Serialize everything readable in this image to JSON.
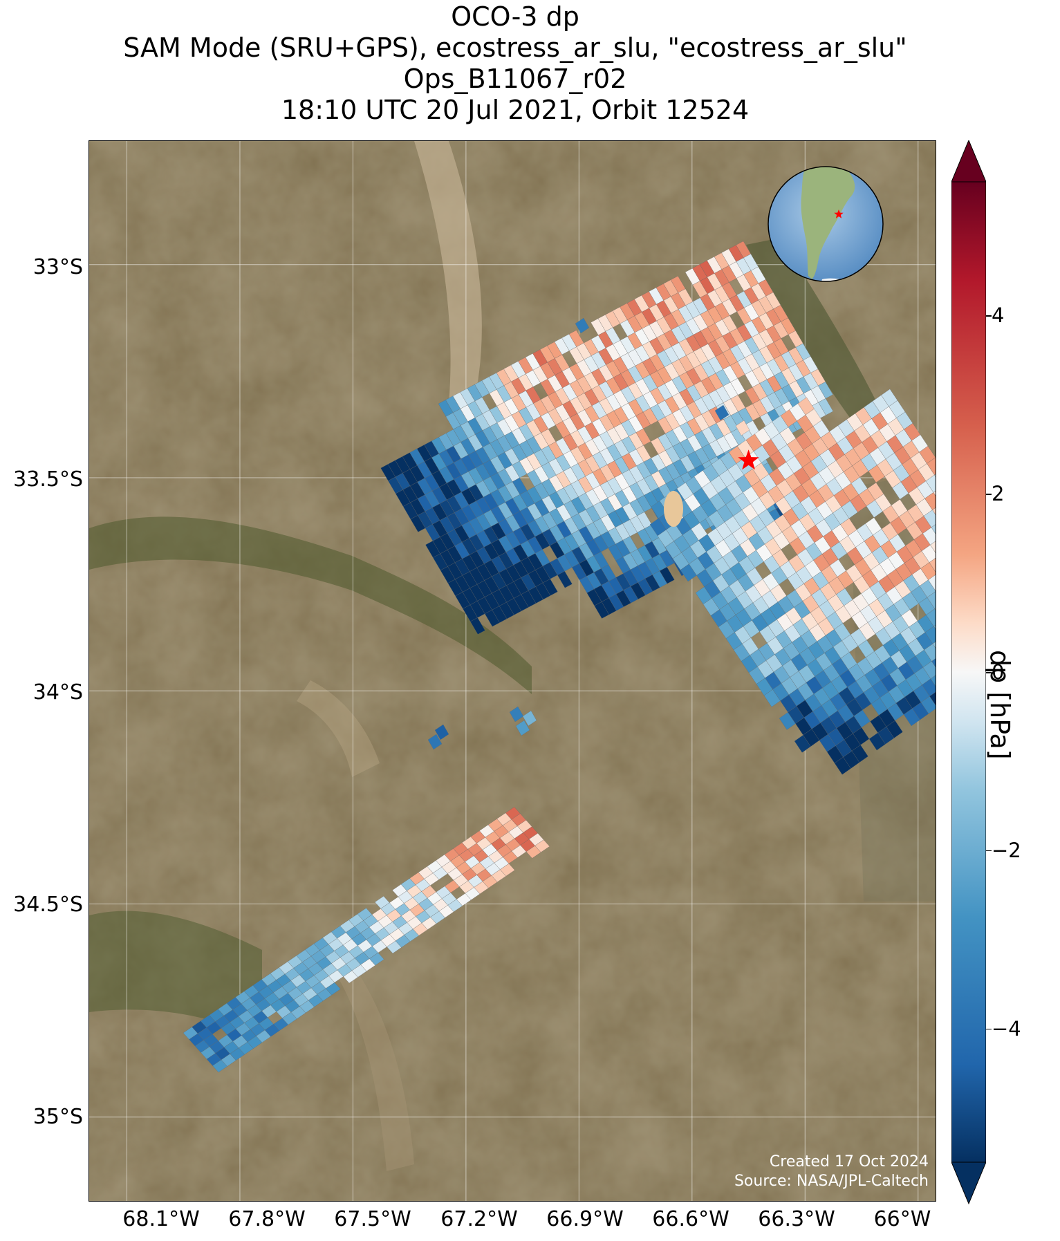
{
  "title": {
    "line1": "OCO-3 dp",
    "line2": "SAM Mode (SRU+GPS), ecostress_ar_slu, \"ecostress_ar_slu\"",
    "line3": "Ops_B11067_r02",
    "line4": "18:10 UTC 20 Jul 2021, Orbit 12524"
  },
  "map": {
    "lon_range": [
      -68.2,
      -65.95
    ],
    "lat_range": [
      -35.2,
      -32.71
    ],
    "lat_ticks": [
      "33°S",
      "33.5°S",
      "34°S",
      "34.5°S",
      "35°S"
    ],
    "lon_ticks": [
      "68.1°W",
      "67.8°W",
      "67.5°W",
      "67.2°W",
      "66.9°W",
      "66.6°W",
      "66.3°W",
      "66°W"
    ],
    "target_marker": {
      "lon": -66.45,
      "lat": -33.46,
      "symbol": "star",
      "color": "#ff0000"
    },
    "basemap": "satellite imagery",
    "grid": true,
    "inset": "globe-south-america",
    "colors": {
      "land": "#7a6a48",
      "vegetation": "#4c5a30",
      "dry": "#b9a68a"
    }
  },
  "colorbar": {
    "label": "dp [hPa]",
    "ticks": [
      "4",
      "2",
      "0",
      "−2",
      "−4"
    ],
    "tick_values": [
      4,
      2,
      0,
      -2,
      -4
    ],
    "range": [
      -5.5,
      5.5
    ],
    "colormap": "RdBu_r",
    "extend": "both"
  },
  "credit": {
    "line1": "Created 17 Oct 2024",
    "line2": "Source: NASA/JPL-Caltech"
  }
}
